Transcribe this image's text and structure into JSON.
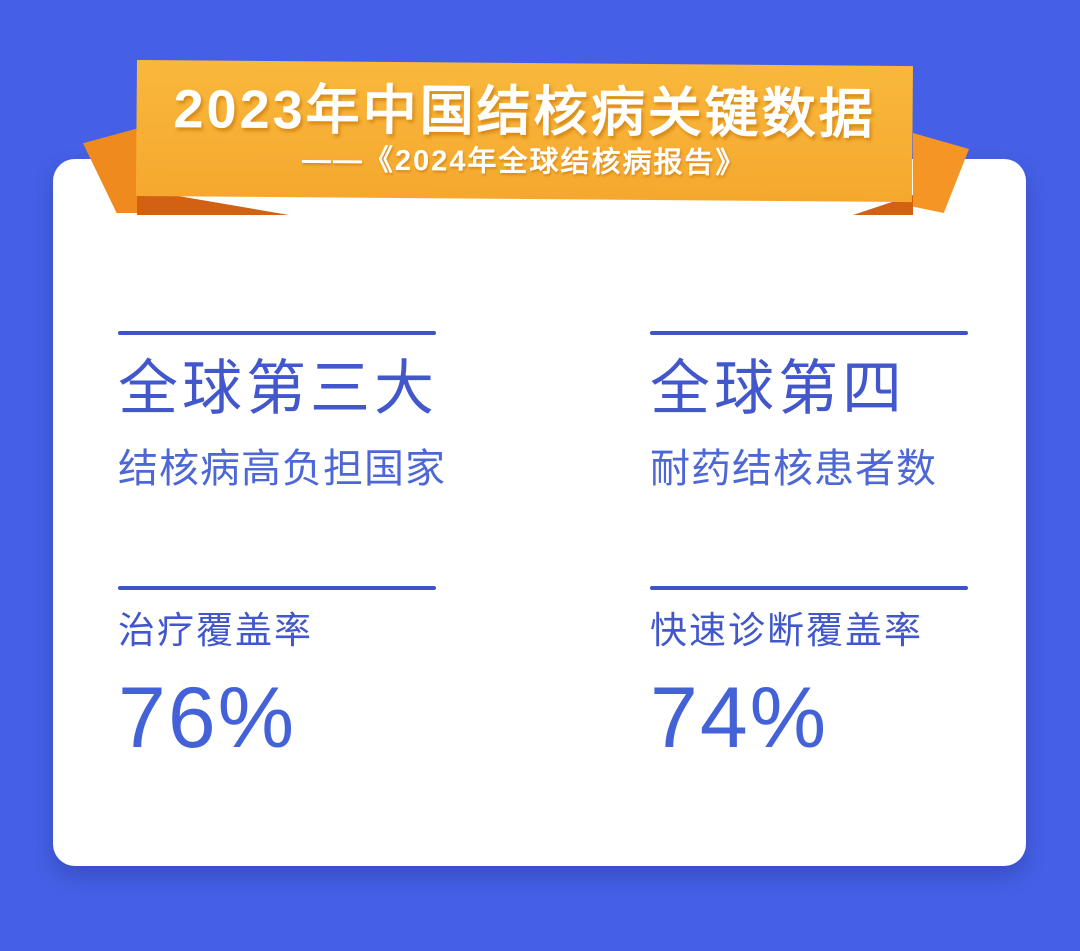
{
  "banner": {
    "title": "2023年中国结核病关键数据",
    "subtitle": "——《2024年全球结核病报告》"
  },
  "stats": [
    {
      "heading": "全球第三大",
      "subheading": "结核病高负担国家",
      "label": "治疗覆盖率",
      "value": "76%"
    },
    {
      "heading": "全球第四",
      "subheading": "耐药结核患者数",
      "label": "快速诊断覆盖率",
      "value": "74%"
    }
  ],
  "colors": {
    "background": "#4560E6",
    "card": "#FFFFFF",
    "banner_gold_light": "#F8B83C",
    "banner_gold_deep": "#F6A82E",
    "ribbon_tail_left": "#EF8B1E",
    "ribbon_tail_right": "#F49526",
    "ribbon_fold": "#D26112",
    "banner_text": "#FFFFFF",
    "text_heading_blue": "#4157CB",
    "text_sub_blue": "#4D68D6",
    "rule_blue": "#3D55C4",
    "text_value_blue": "#4462D8"
  }
}
